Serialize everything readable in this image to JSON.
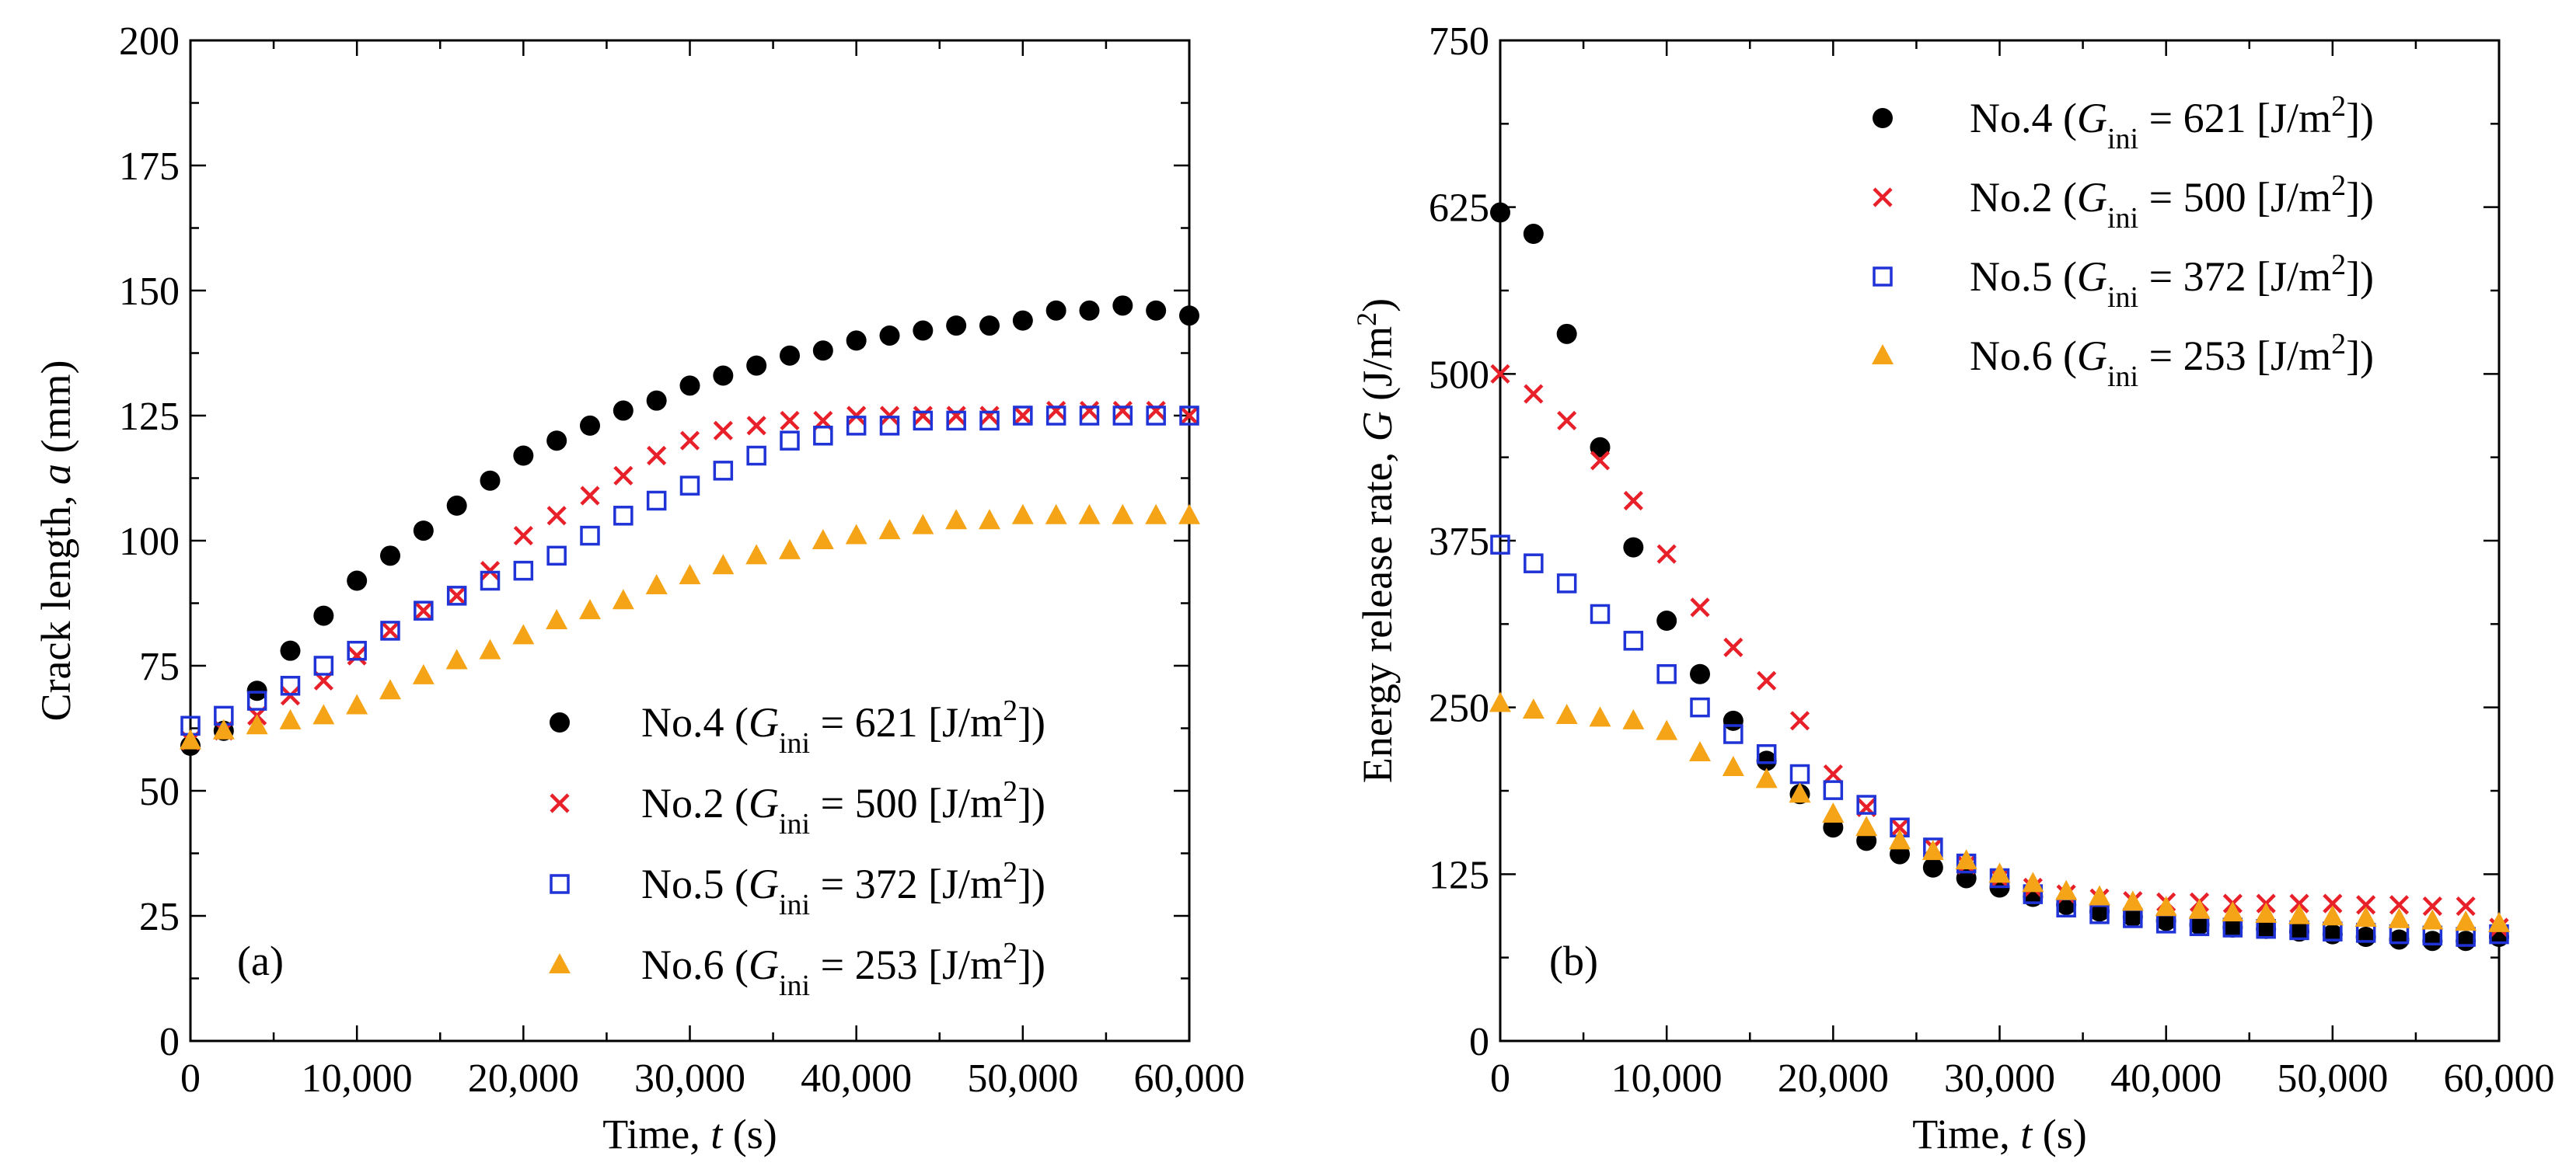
{
  "chart_data": [
    {
      "type": "scatter",
      "panel": "(a)",
      "xlabel": "Time, t (s)",
      "xlabel_parts": {
        "pre": "Time, ",
        "var": "t",
        "post": " (s)"
      },
      "ylabel": "Crack length, a (mm)",
      "ylabel_parts": {
        "pre": "Crack length, ",
        "var": "a",
        "post": " (mm)"
      },
      "xlim": [
        0,
        60000
      ],
      "ylim": [
        0,
        200
      ],
      "xticks": [
        0,
        10000,
        20000,
        30000,
        40000,
        50000,
        60000
      ],
      "xtick_labels": [
        "0",
        "10,000",
        "20,000",
        "30,000",
        "40,000",
        "50,000",
        "60,000"
      ],
      "yticks": [
        0,
        25,
        50,
        75,
        100,
        125,
        150,
        175,
        200
      ],
      "ytick_labels": [
        "0",
        "25",
        "50",
        "75",
        "100",
        "125",
        "150",
        "175",
        "200"
      ],
      "legend_position": "lower-right",
      "x": [
        0,
        2000,
        4000,
        6000,
        8000,
        10000,
        12000,
        14000,
        16000,
        18000,
        20000,
        22000,
        24000,
        26000,
        28000,
        30000,
        32000,
        34000,
        36000,
        38000,
        40000,
        42000,
        44000,
        46000,
        48000,
        50000,
        52000,
        54000,
        56000,
        58000,
        60000
      ],
      "series": [
        {
          "name": "No.4",
          "label_pre": "No.4 (",
          "label_var": "G",
          "label_sub": "ini",
          "label_eq": " = 621 [J/m",
          "label_sup": "2",
          "label_post": "])",
          "marker": "circle",
          "color": "#000000",
          "values": [
            59,
            62,
            70,
            78,
            85,
            92,
            97,
            102,
            107,
            112,
            117,
            120,
            123,
            126,
            128,
            131,
            133,
            135,
            137,
            138,
            140,
            141,
            142,
            143,
            143,
            144,
            146,
            146,
            147,
            146,
            145
          ]
        },
        {
          "name": "No.2",
          "label_pre": "No.2 (",
          "label_var": "G",
          "label_sub": "ini",
          "label_eq": " = 500 [J/m",
          "label_sup": "2",
          "label_post": "])",
          "marker": "cross",
          "color": "#e8202a",
          "values": [
            60,
            62,
            65,
            69,
            72,
            77,
            82,
            86,
            89,
            94,
            101,
            105,
            109,
            113,
            117,
            120,
            122,
            123,
            124,
            124,
            125,
            125,
            125,
            125,
            125,
            125,
            126,
            126,
            126,
            126,
            125
          ]
        },
        {
          "name": "No.5",
          "label_pre": "No.5 (",
          "label_var": "G",
          "label_sub": "ini",
          "label_eq": " = 372 [J/m",
          "label_sup": "2",
          "label_post": "])",
          "marker": "square",
          "color": "#1f33d6",
          "values": [
            63,
            65,
            68,
            71,
            75,
            78,
            82,
            86,
            89,
            92,
            94,
            97,
            101,
            105,
            108,
            111,
            114,
            117,
            120,
            121,
            123,
            123,
            124,
            124,
            124,
            125,
            125,
            125,
            125,
            125,
            125
          ]
        },
        {
          "name": "No.6",
          "label_pre": "No.6 (",
          "label_var": "G",
          "label_sub": "ini",
          "label_eq": " = 253 [J/m",
          "label_sup": "2",
          "label_post": "])",
          "marker": "triangle",
          "color": "#f5a418",
          "values": [
            60,
            62,
            63,
            64,
            65,
            67,
            70,
            73,
            76,
            78,
            81,
            84,
            86,
            88,
            91,
            93,
            95,
            97,
            98,
            100,
            101,
            102,
            103,
            104,
            104,
            105,
            105,
            105,
            105,
            105,
            105
          ]
        }
      ]
    },
    {
      "type": "scatter",
      "panel": "(b)",
      "xlabel": "Time, t (s)",
      "xlabel_parts": {
        "pre": "Time, ",
        "var": "t",
        "post": " (s)"
      },
      "ylabel": "Energy release rate, G (J/m2)",
      "ylabel_parts": {
        "pre": "Energy release rate, ",
        "var": "G",
        "mid": " (J/m",
        "sup": "2",
        "post": ")"
      },
      "xlim": [
        0,
        60000
      ],
      "ylim": [
        0,
        750
      ],
      "xticks": [
        0,
        10000,
        20000,
        30000,
        40000,
        50000,
        60000
      ],
      "xtick_labels": [
        "0",
        "10,000",
        "20,000",
        "30,000",
        "40,000",
        "50,000",
        "60,000"
      ],
      "yticks": [
        0,
        125,
        250,
        375,
        500,
        625,
        750
      ],
      "ytick_labels": [
        "0",
        "125",
        "250",
        "375",
        "500",
        "625",
        "750"
      ],
      "legend_position": "upper-right",
      "x": [
        0,
        2000,
        4000,
        6000,
        8000,
        10000,
        12000,
        14000,
        16000,
        18000,
        20000,
        22000,
        24000,
        26000,
        28000,
        30000,
        32000,
        34000,
        36000,
        38000,
        40000,
        42000,
        44000,
        46000,
        48000,
        50000,
        52000,
        54000,
        56000,
        58000,
        60000
      ],
      "series": [
        {
          "name": "No.4",
          "label_pre": "No.4 (",
          "label_var": "G",
          "label_sub": "ini",
          "label_eq": " = 621 [J/m",
          "label_sup": "2",
          "label_post": "])",
          "marker": "circle",
          "color": "#000000",
          "values": [
            621,
            605,
            530,
            445,
            370,
            315,
            275,
            240,
            210,
            185,
            160,
            150,
            140,
            130,
            122,
            115,
            108,
            102,
            97,
            93,
            90,
            87,
            85,
            84,
            82,
            80,
            78,
            76,
            75,
            75,
            78
          ]
        },
        {
          "name": "No.2",
          "label_pre": "No.2 (",
          "label_var": "G",
          "label_sub": "ini",
          "label_eq": " = 500 [J/m",
          "label_sup": "2",
          "label_post": "])",
          "marker": "cross",
          "color": "#e8202a",
          "values": [
            500,
            485,
            465,
            435,
            405,
            365,
            325,
            295,
            270,
            240,
            200,
            175,
            160,
            145,
            132,
            122,
            115,
            110,
            107,
            105,
            104,
            104,
            103,
            103,
            103,
            103,
            102,
            102,
            101,
            101,
            85
          ]
        },
        {
          "name": "No.5",
          "label_pre": "No.5 (",
          "label_var": "G",
          "label_sub": "ini",
          "label_eq": " = 372 [J/m",
          "label_sup": "2",
          "label_post": "])",
          "marker": "square",
          "color": "#1f33d6",
          "values": [
            372,
            358,
            343,
            320,
            300,
            275,
            250,
            230,
            215,
            200,
            188,
            177,
            160,
            145,
            133,
            122,
            110,
            100,
            95,
            92,
            88,
            86,
            85,
            84,
            83,
            82,
            81,
            80,
            79,
            78,
            80
          ]
        },
        {
          "name": "No.6",
          "label_pre": "No.6 (",
          "label_var": "G",
          "label_sub": "ini",
          "label_eq": " = 253 [J/m",
          "label_sup": "2",
          "label_post": "])",
          "marker": "triangle",
          "color": "#f5a418",
          "values": [
            253,
            248,
            244,
            242,
            240,
            232,
            216,
            205,
            196,
            185,
            170,
            160,
            150,
            142,
            135,
            125,
            118,
            112,
            108,
            104,
            100,
            98,
            96,
            95,
            94,
            93,
            92,
            91,
            90,
            89,
            88
          ]
        }
      ]
    }
  ]
}
